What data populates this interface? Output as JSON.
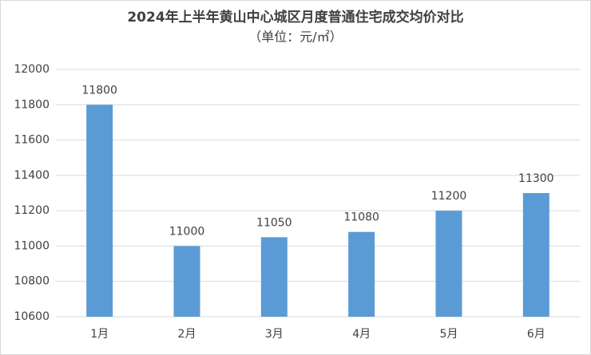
{
  "chart_data": {
    "type": "bar",
    "title": "2024年上半年黄山中心城区月度普通住宅成交均价对比",
    "subtitle": "（单位：元/㎡）",
    "categories": [
      "1月",
      "2月",
      "3月",
      "4月",
      "5月",
      "6月"
    ],
    "values": [
      11800,
      11000,
      11050,
      11080,
      11200,
      11300
    ],
    "color": "#5b9bd5",
    "ylim": [
      10600,
      12000
    ],
    "yticks": [
      10600,
      10800,
      11000,
      11200,
      11400,
      11600,
      11800,
      12000
    ],
    "grid": true
  }
}
